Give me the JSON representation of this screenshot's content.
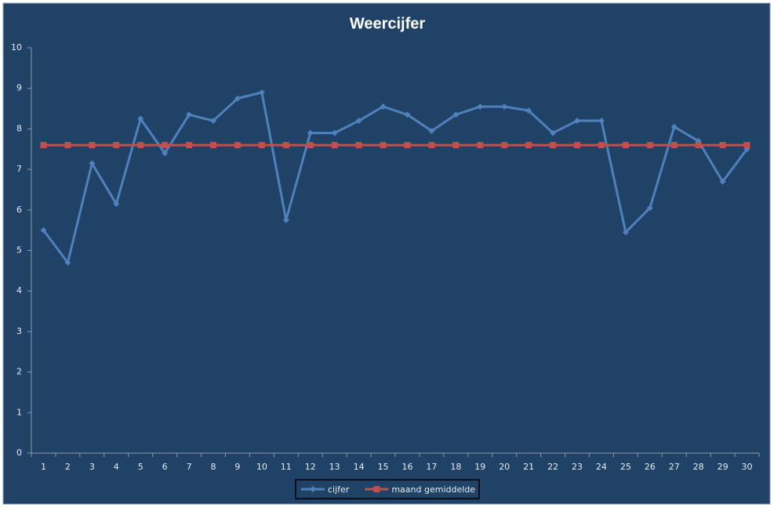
{
  "chart_data": {
    "type": "line",
    "title": "Weercijfer",
    "categories": [
      1,
      2,
      3,
      4,
      5,
      6,
      7,
      8,
      9,
      10,
      11,
      12,
      13,
      14,
      15,
      16,
      17,
      18,
      19,
      20,
      21,
      22,
      23,
      24,
      25,
      26,
      27,
      28,
      29,
      30
    ],
    "series": [
      {
        "name": "cijfer",
        "color": "#4f81bd",
        "marker": "diamond",
        "values": [
          5.5,
          4.7,
          7.15,
          6.15,
          8.25,
          7.4,
          8.35,
          8.2,
          8.75,
          8.9,
          5.75,
          7.9,
          7.9,
          8.2,
          8.55,
          8.35,
          7.95,
          8.35,
          8.55,
          8.55,
          8.45,
          7.9,
          8.2,
          8.2,
          5.45,
          6.05,
          8.05,
          7.7,
          6.7,
          7.5
        ]
      },
      {
        "name": "maand gemiddelde",
        "color": "#c0504d",
        "marker": "square",
        "values": [
          7.6,
          7.6,
          7.6,
          7.6,
          7.6,
          7.6,
          7.6,
          7.6,
          7.6,
          7.6,
          7.6,
          7.6,
          7.6,
          7.6,
          7.6,
          7.6,
          7.6,
          7.6,
          7.6,
          7.6,
          7.6,
          7.6,
          7.6,
          7.6,
          7.6,
          7.6,
          7.6,
          7.6,
          7.6,
          7.6
        ]
      }
    ],
    "ylim": [
      0,
      10
    ],
    "yticks": [
      0,
      1,
      2,
      3,
      4,
      5,
      6,
      7,
      8,
      9,
      10
    ],
    "grid": false,
    "legend": "bottom"
  }
}
